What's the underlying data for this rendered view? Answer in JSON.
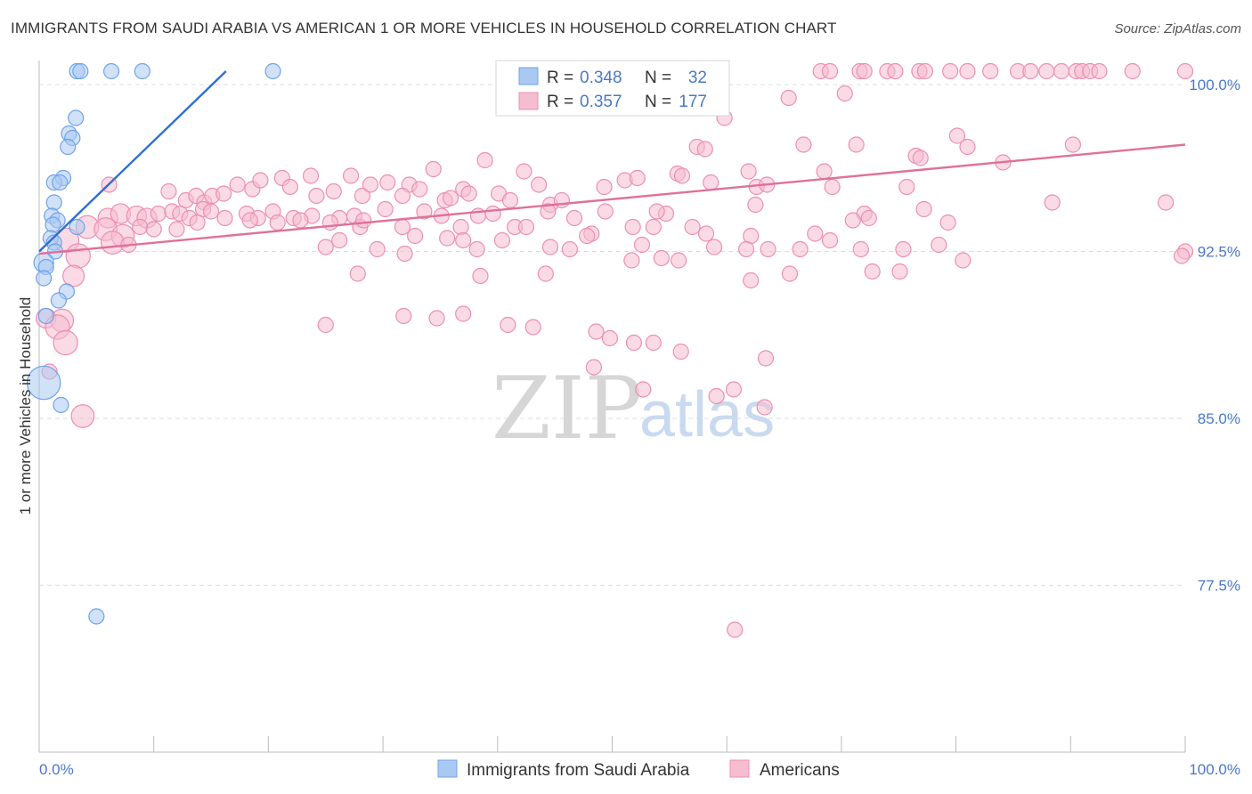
{
  "title": "IMMIGRANTS FROM SAUDI ARABIA VS AMERICAN 1 OR MORE VEHICLES IN HOUSEHOLD CORRELATION CHART",
  "source": "Source: ZipAtlas.com",
  "watermark": {
    "zip": "ZIP",
    "atlas": "atlas"
  },
  "colors": {
    "blue": "#6fa3e8",
    "blue_fill": "#a9c8f2",
    "blue_line": "#2d6fd1",
    "pink": "#ec8fb0",
    "pink_fill": "#f6bcd0",
    "pink_line": "#e0709a",
    "grid": "#d8dde8",
    "axis": "#bbbbbb",
    "tick_label": "#4a78c8"
  },
  "legend": {
    "rows": [
      {
        "r_label": "R =",
        "r_value": "0.348",
        "n_label": "N =",
        "n_value": "32",
        "color": "blue"
      },
      {
        "r_label": "R =",
        "r_value": "0.357",
        "n_label": "N =",
        "n_value": "177",
        "color": "pink"
      }
    ],
    "bottom": [
      {
        "label": "Immigrants from Saudi Arabia",
        "color": "blue"
      },
      {
        "label": "Americans",
        "color": "pink"
      }
    ]
  },
  "chart_data": {
    "type": "scatter",
    "title": "IMMIGRANTS FROM SAUDI ARABIA VS AMERICAN 1 OR MORE VEHICLES IN HOUSEHOLD CORRELATION CHART",
    "xlabel": "",
    "ylabel": "1 or more Vehicles in Household",
    "xlim": [
      0,
      100
    ],
    "ylim": [
      70.0,
      100.6
    ],
    "x_tick_labels": [
      "0.0%",
      "100.0%"
    ],
    "y_ticks": [
      100.0,
      92.5,
      85.0,
      77.5
    ],
    "y_tick_labels": [
      "100.0%",
      "92.5%",
      "85.0%",
      "77.5%"
    ],
    "grid": true,
    "legend_position": "top-center",
    "series": [
      {
        "name": "Immigrants from Saudi Arabia",
        "color": "blue",
        "trend": {
          "x": [
            0.0,
            16.3
          ],
          "y": [
            92.5,
            100.6
          ]
        },
        "points": [
          [
            3.3,
            100.6,
            1
          ],
          [
            3.6,
            100.6,
            1
          ],
          [
            6.3,
            100.6,
            1
          ],
          [
            9.0,
            100.6,
            1
          ],
          [
            20.4,
            100.6,
            1
          ],
          [
            3.2,
            98.5,
            1
          ],
          [
            2.6,
            97.8,
            1
          ],
          [
            2.9,
            97.6,
            1
          ],
          [
            2.5,
            97.2,
            1
          ],
          [
            2.1,
            95.8,
            1
          ],
          [
            1.3,
            95.6,
            1
          ],
          [
            1.8,
            95.6,
            1
          ],
          [
            1.3,
            94.7,
            1
          ],
          [
            1.1,
            94.1,
            1
          ],
          [
            1.6,
            93.9,
            1
          ],
          [
            1.2,
            93.7,
            1
          ],
          [
            3.3,
            93.6,
            1
          ],
          [
            1.0,
            93.1,
            1
          ],
          [
            1.3,
            92.9,
            1
          ],
          [
            1.4,
            92.5,
            1
          ],
          [
            0.4,
            92.0,
            1.3
          ],
          [
            0.6,
            91.8,
            1
          ],
          [
            0.4,
            91.3,
            1
          ],
          [
            2.4,
            90.7,
            1
          ],
          [
            1.7,
            90.3,
            1
          ],
          [
            0.6,
            89.6,
            1
          ],
          [
            0.4,
            86.6,
            2.2
          ],
          [
            1.9,
            85.6,
            1
          ],
          [
            5.0,
            76.1,
            1
          ]
        ]
      },
      {
        "name": "Americans",
        "color": "pink",
        "trend": {
          "x": [
            0.0,
            100.0
          ],
          "y": [
            92.4,
            97.3
          ]
        },
        "points": [
          [
            65.4,
            99.4,
            1
          ],
          [
            71.6,
            100.6,
            1
          ],
          [
            72.0,
            100.6,
            1
          ],
          [
            68.2,
            100.6,
            1
          ],
          [
            69.0,
            100.6,
            1
          ],
          [
            74.0,
            100.6,
            1
          ],
          [
            74.7,
            100.6,
            1
          ],
          [
            76.8,
            100.6,
            1
          ],
          [
            77.3,
            100.6,
            1
          ],
          [
            79.5,
            100.6,
            1
          ],
          [
            81.0,
            100.6,
            1
          ],
          [
            83.0,
            100.6,
            1
          ],
          [
            85.4,
            100.6,
            1
          ],
          [
            86.5,
            100.6,
            1
          ],
          [
            87.9,
            100.6,
            1
          ],
          [
            89.2,
            100.6,
            1
          ],
          [
            90.5,
            100.6,
            1
          ],
          [
            91.0,
            100.6,
            1
          ],
          [
            91.7,
            100.6,
            1
          ],
          [
            92.5,
            100.6,
            1
          ],
          [
            95.4,
            100.6,
            1
          ],
          [
            100.0,
            100.6,
            1
          ],
          [
            70.3,
            99.6,
            1
          ],
          [
            56.5,
            99.1,
            1
          ],
          [
            80.1,
            97.7,
            1
          ],
          [
            81.0,
            97.2,
            1
          ],
          [
            90.2,
            97.3,
            1
          ],
          [
            71.3,
            97.3,
            1
          ],
          [
            57.4,
            97.2,
            1
          ],
          [
            58.1,
            97.1,
            1
          ],
          [
            66.7,
            97.3,
            1
          ],
          [
            59.8,
            98.5,
            1
          ],
          [
            76.5,
            96.8,
            1
          ],
          [
            76.9,
            96.7,
            1
          ],
          [
            84.1,
            96.5,
            1
          ],
          [
            34.4,
            96.2,
            1
          ],
          [
            38.9,
            96.6,
            1
          ],
          [
            42.3,
            96.1,
            1
          ],
          [
            61.9,
            96.1,
            1
          ],
          [
            68.5,
            96.1,
            1
          ],
          [
            23.7,
            95.9,
            1
          ],
          [
            27.2,
            95.9,
            1
          ],
          [
            30.4,
            95.6,
            1
          ],
          [
            32.3,
            95.5,
            1
          ],
          [
            33.2,
            95.3,
            1
          ],
          [
            37.0,
            95.3,
            1
          ],
          [
            43.6,
            95.5,
            1
          ],
          [
            49.3,
            95.4,
            1
          ],
          [
            51.1,
            95.7,
            1
          ],
          [
            52.2,
            95.8,
            1
          ],
          [
            55.7,
            96.0,
            1
          ],
          [
            56.1,
            95.9,
            1
          ],
          [
            58.6,
            95.6,
            1
          ],
          [
            62.6,
            95.4,
            1
          ],
          [
            63.5,
            95.5,
            1
          ],
          [
            69.2,
            95.4,
            1
          ],
          [
            75.7,
            95.4,
            1
          ],
          [
            6.1,
            95.5,
            1
          ],
          [
            11.3,
            95.2,
            1
          ],
          [
            12.8,
            94.8,
            1
          ],
          [
            13.7,
            95.0,
            1
          ],
          [
            14.4,
            94.7,
            1
          ],
          [
            15.1,
            95.0,
            1
          ],
          [
            16.1,
            95.1,
            1
          ],
          [
            17.3,
            95.5,
            1
          ],
          [
            18.6,
            95.3,
            1
          ],
          [
            19.3,
            95.7,
            1
          ],
          [
            21.2,
            95.8,
            1
          ],
          [
            21.9,
            95.4,
            1
          ],
          [
            24.2,
            95.0,
            1
          ],
          [
            25.7,
            95.2,
            1
          ],
          [
            28.2,
            95.0,
            1
          ],
          [
            28.9,
            95.5,
            1
          ],
          [
            31.7,
            95.0,
            1
          ],
          [
            35.4,
            94.8,
            1
          ],
          [
            35.9,
            94.9,
            1
          ],
          [
            37.5,
            95.1,
            1
          ],
          [
            40.1,
            95.1,
            1
          ],
          [
            41.1,
            94.8,
            1
          ],
          [
            44.6,
            94.6,
            1
          ],
          [
            45.6,
            94.8,
            1
          ],
          [
            49.4,
            94.3,
            1
          ],
          [
            54.7,
            94.2,
            1
          ],
          [
            62.5,
            94.6,
            1
          ],
          [
            72.0,
            94.2,
            1
          ],
          [
            77.2,
            94.4,
            1
          ],
          [
            88.4,
            94.7,
            1
          ],
          [
            98.3,
            94.7,
            1
          ],
          [
            6.0,
            94.0,
            1.3
          ],
          [
            7.1,
            94.2,
            1.3
          ],
          [
            8.5,
            94.1,
            1.3
          ],
          [
            9.4,
            94.0,
            1.3
          ],
          [
            10.4,
            94.2,
            1
          ],
          [
            11.6,
            94.3,
            1
          ],
          [
            12.3,
            94.2,
            1
          ],
          [
            13.1,
            94.0,
            1
          ],
          [
            14.3,
            94.4,
            1
          ],
          [
            15.0,
            94.3,
            1
          ],
          [
            16.2,
            94.0,
            1
          ],
          [
            18.1,
            94.2,
            1
          ],
          [
            19.1,
            94.0,
            1
          ],
          [
            20.4,
            94.3,
            1
          ],
          [
            22.2,
            94.0,
            1
          ],
          [
            23.8,
            94.1,
            1
          ],
          [
            26.2,
            94.0,
            1
          ],
          [
            27.5,
            94.1,
            1
          ],
          [
            30.2,
            94.4,
            1
          ],
          [
            33.6,
            94.3,
            1
          ],
          [
            35.1,
            94.1,
            1
          ],
          [
            38.3,
            94.1,
            1
          ],
          [
            39.6,
            94.2,
            1
          ],
          [
            44.4,
            94.3,
            1
          ],
          [
            46.7,
            94.0,
            1
          ],
          [
            53.9,
            94.3,
            1
          ],
          [
            71.0,
            93.9,
            1
          ],
          [
            72.4,
            94.0,
            1
          ],
          [
            79.3,
            93.8,
            1
          ],
          [
            4.2,
            93.6,
            1.5
          ],
          [
            5.8,
            93.5,
            1.5
          ],
          [
            7.3,
            93.2,
            1.5
          ],
          [
            8.8,
            93.6,
            1
          ],
          [
            10.0,
            93.5,
            1
          ],
          [
            12.0,
            93.5,
            1
          ],
          [
            13.8,
            93.8,
            1
          ],
          [
            18.4,
            93.9,
            1
          ],
          [
            20.8,
            93.8,
            1
          ],
          [
            22.8,
            93.9,
            1
          ],
          [
            25.4,
            93.8,
            1
          ],
          [
            28.0,
            93.6,
            1
          ],
          [
            28.3,
            93.9,
            1
          ],
          [
            31.7,
            93.6,
            1
          ],
          [
            36.8,
            93.6,
            1
          ],
          [
            41.5,
            93.6,
            1
          ],
          [
            42.5,
            93.6,
            1
          ],
          [
            48.2,
            93.3,
            1
          ],
          [
            51.8,
            93.6,
            1
          ],
          [
            53.6,
            93.6,
            1
          ],
          [
            57.0,
            93.6,
            1
          ],
          [
            58.2,
            93.3,
            1
          ],
          [
            62.1,
            93.2,
            1
          ],
          [
            69.0,
            93.0,
            1
          ],
          [
            2.4,
            93.0,
            1.6
          ],
          [
            6.4,
            92.9,
            1.5
          ],
          [
            7.8,
            92.8,
            1
          ],
          [
            26.2,
            93.0,
            1
          ],
          [
            29.5,
            92.6,
            1
          ],
          [
            32.8,
            93.2,
            1
          ],
          [
            35.6,
            93.1,
            1
          ],
          [
            37.0,
            93.0,
            1
          ],
          [
            40.4,
            93.0,
            1
          ],
          [
            44.6,
            92.7,
            1
          ],
          [
            47.8,
            93.2,
            1
          ],
          [
            52.6,
            92.8,
            1
          ],
          [
            58.9,
            92.7,
            1
          ],
          [
            61.7,
            92.6,
            1
          ],
          [
            63.6,
            92.6,
            1
          ],
          [
            67.7,
            93.3,
            1
          ],
          [
            3.4,
            92.3,
            1.6
          ],
          [
            25.0,
            92.7,
            1
          ],
          [
            31.9,
            92.4,
            1
          ],
          [
            38.2,
            92.6,
            1
          ],
          [
            46.3,
            92.6,
            1
          ],
          [
            51.7,
            92.1,
            1
          ],
          [
            55.8,
            92.1,
            1
          ],
          [
            66.4,
            92.6,
            1
          ],
          [
            71.7,
            92.6,
            1
          ],
          [
            75.4,
            92.6,
            1
          ],
          [
            78.5,
            92.8,
            1
          ],
          [
            100.0,
            92.5,
            1
          ],
          [
            3.0,
            91.4,
            1.4
          ],
          [
            27.8,
            91.5,
            1
          ],
          [
            38.5,
            91.4,
            1
          ],
          [
            44.2,
            91.5,
            1
          ],
          [
            54.3,
            92.2,
            1
          ],
          [
            62.1,
            91.2,
            1
          ],
          [
            65.5,
            91.5,
            1
          ],
          [
            72.7,
            91.6,
            1
          ],
          [
            75.1,
            91.6,
            1
          ],
          [
            80.6,
            92.1,
            1
          ],
          [
            99.7,
            92.3,
            1
          ],
          [
            0.6,
            89.5,
            1.3
          ],
          [
            2.0,
            89.4,
            1.5
          ],
          [
            1.6,
            89.1,
            1.6
          ],
          [
            25.0,
            89.2,
            1
          ],
          [
            31.8,
            89.6,
            1
          ],
          [
            34.7,
            89.5,
            1
          ],
          [
            37.0,
            89.7,
            1
          ],
          [
            40.9,
            89.2,
            1
          ],
          [
            43.1,
            89.1,
            1
          ],
          [
            48.6,
            88.9,
            1
          ],
          [
            49.8,
            88.6,
            1
          ],
          [
            51.9,
            88.4,
            1
          ],
          [
            53.6,
            88.4,
            1
          ],
          [
            56.0,
            88.0,
            1
          ],
          [
            63.4,
            87.7,
            1
          ],
          [
            2.3,
            88.4,
            1.6
          ],
          [
            0.9,
            87.1,
            1
          ],
          [
            3.8,
            85.1,
            1.5
          ],
          [
            48.4,
            87.3,
            1
          ],
          [
            52.7,
            86.3,
            1
          ],
          [
            60.6,
            86.3,
            1
          ],
          [
            59.1,
            86.0,
            1
          ],
          [
            63.3,
            85.5,
            1
          ],
          [
            60.7,
            75.5,
            1
          ]
        ]
      }
    ]
  }
}
